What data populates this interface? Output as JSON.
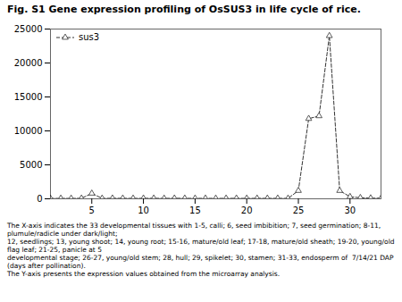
{
  "chart_data": {
    "type": "line",
    "title": "Fig. S1 Gene expression profiling of OsSUS3 in life cycle of rice.",
    "x": [
      1,
      2,
      3,
      4,
      5,
      6,
      7,
      8,
      9,
      10,
      11,
      12,
      13,
      14,
      15,
      16,
      17,
      18,
      19,
      20,
      21,
      22,
      23,
      24,
      25,
      26,
      27,
      28,
      29,
      30,
      31,
      32,
      33
    ],
    "series": [
      {
        "name": "sus3",
        "color": "#333333",
        "marker": "triangle",
        "line_style": "dashed",
        "values": [
          50,
          60,
          55,
          70,
          800,
          60,
          80,
          70,
          65,
          70,
          75,
          60,
          80,
          70,
          65,
          70,
          60,
          65,
          70,
          60,
          70,
          65,
          70,
          60,
          1200,
          11800,
          12200,
          24000,
          1200,
          300,
          150,
          100,
          80
        ]
      }
    ],
    "xlim": [
      1,
      33
    ],
    "ylim": [
      0,
      25000
    ],
    "xticks": [
      5,
      10,
      15,
      20,
      25,
      30
    ],
    "yticks": [
      0,
      5000,
      10000,
      15000,
      20000,
      25000
    ],
    "grid": false,
    "legend": "upper left",
    "annotations": [
      "The X-axis indicates the 33 developmental tissues with 1-5, calli; 6, seed imbibition; 7, seed germination; 8-11, plumule/radicle under dark/light;",
      "12, seedlings; 13, young shoot; 14, young root; 15-16, mature/old leaf; 17-18, mature/old sheath; 19-20, young/old flag leaf; 21-25, panicle at 5",
      "developmental stage; 26-27, young/old stem; 28, hull; 29, spikelet; 30, stamen; 31-33, endosperm of  7/14/21 DAP (days after pollination).",
      "The Y-axis presents the expression values obtained from the microarray analysis."
    ]
  }
}
